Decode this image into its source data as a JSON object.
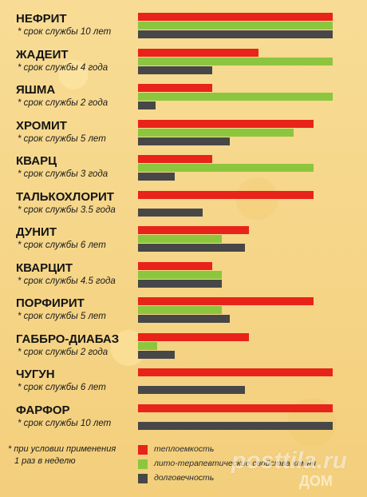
{
  "chart_data": {
    "type": "bar",
    "orientation": "horizontal",
    "categories": [
      {
        "name": "НЕФРИТ",
        "note": "* срок службы 10 лет"
      },
      {
        "name": "ЖАДЕИТ",
        "note": "* срок службы 4 года"
      },
      {
        "name": "ЯШМА",
        "note": "* срок службы  2 года"
      },
      {
        "name": "ХРОМИТ",
        "note": "* срок службы  5 лет"
      },
      {
        "name": "КВАРЦ",
        "note": "* срок службы  3 года"
      },
      {
        "name": "ТАЛЬКОХЛОРИТ",
        "note": "* срок службы  3.5 года"
      },
      {
        "name": "ДУНИТ",
        "note": "* срок службы 6 лет"
      },
      {
        "name": "КВАРЦИТ",
        "note": "* срок службы 4.5 года"
      },
      {
        "name": "ПОРФИРИТ",
        "note": "* срок службы 5 лет"
      },
      {
        "name": "ГАББРО-ДИАБАЗ",
        "note": "* срок службы  2 года"
      },
      {
        "name": "ЧУГУН",
        "note": "* срок службы  6 лет"
      },
      {
        "name": "ФАРФОР",
        "note": "* срок службы 10 лет"
      }
    ],
    "series": [
      {
        "name": "теплоемкость",
        "color": "#e8231a",
        "values": [
          1.0,
          0.62,
          0.38,
          0.9,
          0.38,
          0.9,
          0.57,
          0.38,
          0.9,
          0.57,
          1.0,
          1.0
        ]
      },
      {
        "name": "лито-терапевтические свойства камня",
        "color": "#8cc63e",
        "values": [
          1.0,
          1.0,
          1.0,
          0.8,
          0.9,
          0.0,
          0.43,
          0.43,
          0.43,
          0.1,
          0.0,
          0.0
        ]
      },
      {
        "name": "долговечность",
        "color": "#474747",
        "values": [
          1.0,
          0.38,
          0.09,
          0.47,
          0.19,
          0.33,
          0.55,
          0.43,
          0.47,
          0.19,
          0.55,
          1.0
        ]
      }
    ],
    "xlim": [
      0,
      1
    ],
    "grid": false,
    "legend_position": "bottom"
  },
  "footnote": {
    "line1": "*  при условии применения",
    "line2": "1 раз в неделю"
  },
  "watermark": {
    "text": "posttila.ru",
    "sub": "ДОМ"
  }
}
